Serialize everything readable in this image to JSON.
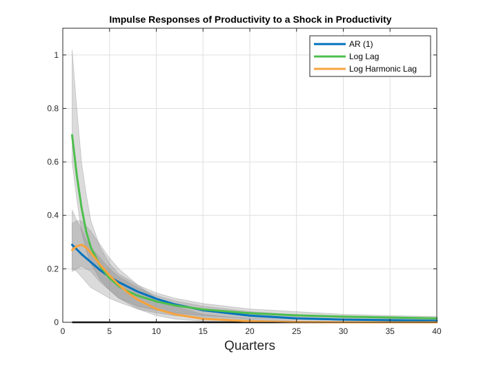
{
  "chart_data": {
    "type": "line",
    "title": "Impulse Responses of Productivity to a Shock in Productivity",
    "xlabel": "Quarters",
    "ylabel": "",
    "xlim": [
      0,
      40
    ],
    "ylim": [
      0,
      1.1
    ],
    "xticks": [
      0,
      5,
      10,
      15,
      20,
      25,
      30,
      35,
      40
    ],
    "yticks": [
      0,
      0.2,
      0.4,
      0.6,
      0.8,
      1
    ],
    "ytick_labels": [
      "0",
      "0.2",
      "0.4",
      "0.6",
      "0.8",
      "1"
    ],
    "grid": true,
    "legend_position": "top-right",
    "series": [
      {
        "name": "AR (1)",
        "color": "#0072BD",
        "x": [
          1,
          2,
          3,
          4,
          5,
          6,
          8,
          10,
          12,
          15,
          20,
          25,
          30,
          35,
          40
        ],
        "y": [
          0.29,
          0.255,
          0.225,
          0.195,
          0.17,
          0.15,
          0.115,
          0.088,
          0.067,
          0.045,
          0.025,
          0.015,
          0.01,
          0.008,
          0.006
        ]
      },
      {
        "name": "Log Lag",
        "color": "#4DBE4D",
        "x": [
          1,
          1.5,
          2,
          2.5,
          3,
          4,
          5,
          6,
          7,
          8,
          10,
          12,
          15,
          20,
          25,
          30,
          35,
          40
        ],
        "y": [
          0.7,
          0.55,
          0.43,
          0.34,
          0.28,
          0.21,
          0.165,
          0.135,
          0.115,
          0.1,
          0.078,
          0.063,
          0.048,
          0.034,
          0.026,
          0.021,
          0.018,
          0.015
        ]
      },
      {
        "name": "Log Harmonic Lag",
        "color": "#F7A33C",
        "x": [
          1,
          1.5,
          2,
          2.5,
          3,
          4,
          5,
          6,
          7,
          8,
          10,
          12,
          15,
          20,
          25,
          30,
          35,
          40
        ],
        "y": [
          0.27,
          0.285,
          0.29,
          0.28,
          0.26,
          0.215,
          0.175,
          0.14,
          0.11,
          0.085,
          0.05,
          0.03,
          0.013,
          0.004,
          0.001,
          0.0,
          0.0,
          0.0
        ]
      }
    ],
    "confidence_bands": {
      "x": [
        1,
        1.5,
        2,
        2.5,
        3,
        4,
        5,
        6,
        8,
        10,
        12,
        15,
        20,
        25,
        30,
        35,
        40
      ],
      "bands": [
        {
          "series": "Log Lag",
          "lower": [
            0.6,
            0.46,
            0.34,
            0.27,
            0.22,
            0.16,
            0.12,
            0.09,
            0.06,
            0.045,
            0.035,
            0.025,
            0.015,
            0.01,
            0.008,
            0.006,
            0.005
          ],
          "upper": [
            1.02,
            0.8,
            0.6,
            0.48,
            0.38,
            0.28,
            0.22,
            0.18,
            0.14,
            0.11,
            0.09,
            0.07,
            0.05,
            0.04,
            0.03,
            0.025,
            0.022
          ]
        },
        {
          "series": "AR (1)",
          "lower": [
            0.2,
            0.19,
            0.17,
            0.15,
            0.13,
            0.11,
            0.09,
            0.075,
            0.05,
            0.035,
            0.025,
            0.015,
            0.006,
            0.003,
            0.001,
            0.0,
            0.0
          ],
          "upper": [
            0.42,
            0.38,
            0.35,
            0.31,
            0.28,
            0.24,
            0.2,
            0.17,
            0.13,
            0.1,
            0.08,
            0.06,
            0.04,
            0.028,
            0.02,
            0.015,
            0.012
          ]
        },
        {
          "series": "Log Harmonic Lag",
          "lower": [
            0.19,
            0.2,
            0.21,
            0.2,
            0.19,
            0.15,
            0.12,
            0.09,
            0.05,
            0.025,
            0.012,
            0.004,
            0.0,
            0.0,
            0.0,
            0.0,
            0.0
          ],
          "upper": [
            0.37,
            0.38,
            0.38,
            0.36,
            0.34,
            0.29,
            0.24,
            0.2,
            0.14,
            0.09,
            0.06,
            0.03,
            0.012,
            0.005,
            0.002,
            0.001,
            0.0
          ]
        }
      ]
    },
    "zero_line": {
      "x": [
        1,
        40
      ],
      "y": 0
    }
  }
}
